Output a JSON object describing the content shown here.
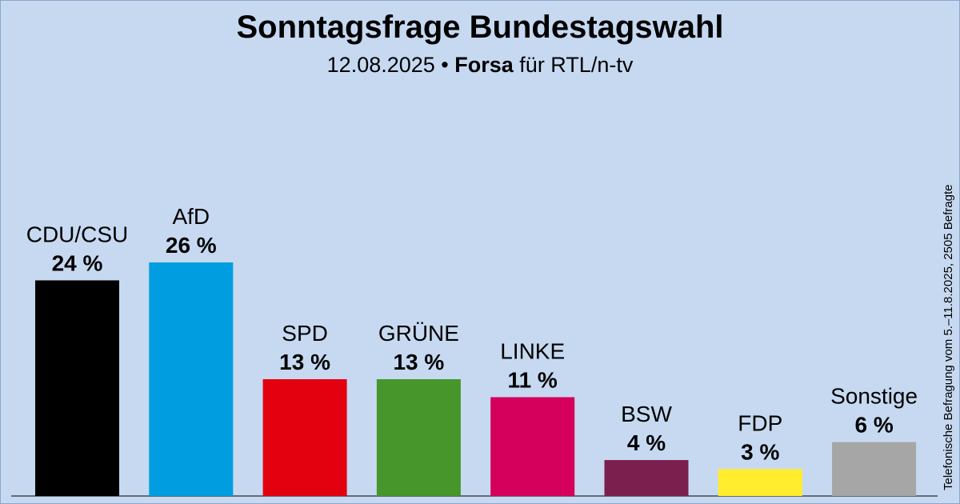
{
  "chart_data": {
    "type": "bar",
    "title": "Sonntagsfrage Bundestagswahl",
    "subtitle": {
      "date": "12.08.2025",
      "separator": " • ",
      "institute": "Forsa",
      "client": " für RTL/n-tv"
    },
    "note": "Telefonische Befragung vom 5.–11.8.2025, 2505 Befragte",
    "categories": [
      "CDU/CSU",
      "AfD",
      "SPD",
      "GRÜNE",
      "LINKE",
      "BSW",
      "FDP",
      "Sonstige"
    ],
    "values": [
      24,
      26,
      13,
      13,
      11,
      4,
      3,
      6
    ],
    "value_labels": [
      "24 %",
      "26 %",
      "13 %",
      "13 %",
      "11 %",
      "4 %",
      "3 %",
      "6 %"
    ],
    "colors": [
      "#000000",
      "#009ee0",
      "#e3000f",
      "#46962b",
      "#d4005c",
      "#7b1f4e",
      "#ffed2e",
      "#a6a6a6"
    ],
    "ylim": [
      0,
      26
    ],
    "grid": false,
    "legend": "none"
  }
}
